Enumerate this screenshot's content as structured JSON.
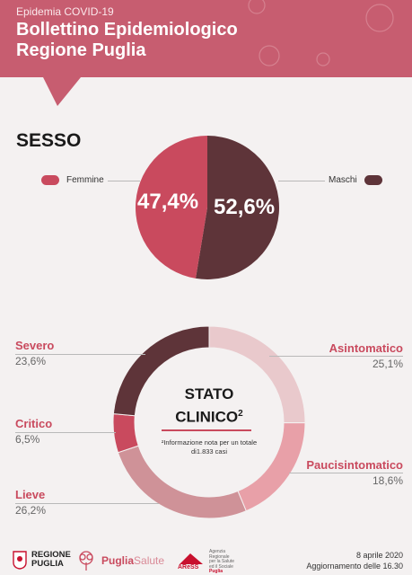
{
  "header": {
    "supertitle": "Epidemia COVID-19",
    "title_line1": "Bollettino Epidemiologico",
    "title_line2": "Regione Puglia",
    "bg_color": "#c75d70"
  },
  "chart_data": [
    {
      "type": "pie",
      "title": "SESSO",
      "categories": [
        "Femmine",
        "Maschi"
      ],
      "values": [
        47.4,
        52.6
      ],
      "value_labels": [
        "47,4%",
        "52,6%"
      ],
      "colors": [
        "#c94a5e",
        "#5e3439"
      ],
      "legend": "left-right"
    },
    {
      "type": "pie",
      "title": "STATO CLINICO",
      "title_superscript": "2",
      "categories": [
        "Asintomatico",
        "Paucisintomatico",
        "Lieve",
        "Critico",
        "Severo"
      ],
      "values": [
        25.1,
        18.6,
        26.2,
        6.5,
        23.6
      ],
      "value_labels": [
        "25,1%",
        "18,6%",
        "26,2%",
        "6,5%",
        "23,6%"
      ],
      "colors": [
        "#e9c9cc",
        "#e8a0a8",
        "#cf9298",
        "#c94a5e",
        "#5e3439"
      ],
      "note": "²Informazione nota per un totale di1.833 casi"
    }
  ],
  "footer": {
    "logo1_line1": "REGIONE",
    "logo1_line2": "PUGLIA",
    "logo2_bold": "Puglia",
    "logo2_light": "Salute",
    "logo3_name": "AReSS",
    "logo3_desc1": "Agenzia",
    "logo3_desc2": "Regionale",
    "logo3_desc3": "per la Salute",
    "logo3_desc4": "ed il Sociale",
    "logo3_desc5": "Puglia",
    "date": "8 aprile 2020",
    "update": "Aggiornamento delle 16.30"
  }
}
